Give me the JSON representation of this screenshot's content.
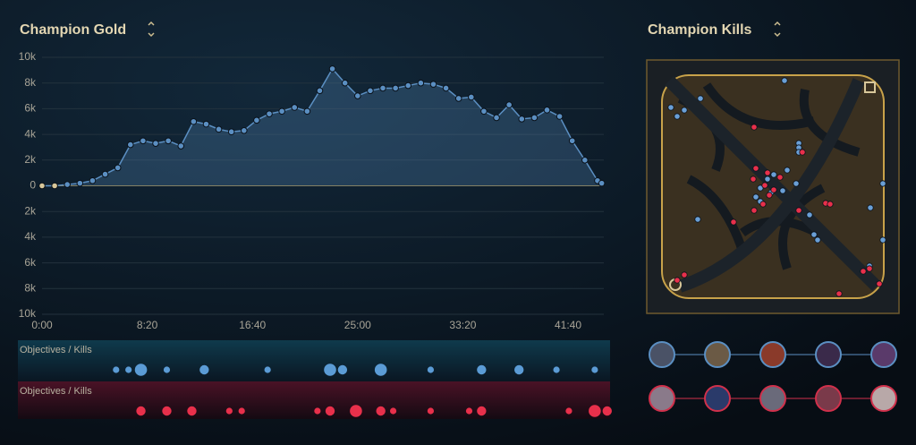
{
  "chart_data": [
    {
      "type": "line",
      "title": "Champion Gold",
      "x": [
        0,
        60,
        120,
        180,
        240,
        300,
        360,
        420,
        480,
        540,
        600,
        660,
        720,
        780,
        840,
        900,
        960,
        1020,
        1080,
        1140,
        1200,
        1260,
        1320,
        1380,
        1440,
        1500,
        1560,
        1620,
        1680,
        1740,
        1800,
        1860,
        1920,
        1980,
        2040,
        2100,
        2160,
        2220,
        2280,
        2340,
        2400,
        2460,
        2520,
        2580,
        2640,
        2660
      ],
      "series": [
        {
          "color": "#5b8fc2",
          "values": [
            0,
            0,
            100,
            200,
            400,
            900,
            1400,
            3200,
            3500,
            3300,
            3500,
            3100,
            5000,
            4800,
            4400,
            4200,
            4300,
            5100,
            5600,
            5800,
            6100,
            5800,
            7400,
            9100,
            8000,
            7000,
            7400,
            7600,
            7600,
            7800,
            8000,
            7900,
            7600,
            6800,
            6900,
            5800,
            5300,
            6300,
            5200,
            5300,
            5900,
            5400,
            3500,
            2000,
            400,
            200
          ]
        }
      ],
      "neutral_color": "#d8c79a",
      "xlim": [
        0,
        2670
      ],
      "xticks": [
        {
          "value": 0,
          "label": "0:00"
        },
        {
          "value": 500,
          "label": "8:20"
        },
        {
          "value": 1000,
          "label": "16:40"
        },
        {
          "value": 1500,
          "label": "25:00"
        },
        {
          "value": 2000,
          "label": "33:20"
        },
        {
          "value": 2500,
          "label": "41:40"
        }
      ],
      "ylim": [
        -10000,
        10000
      ],
      "yticks": [
        {
          "value": 10000,
          "label": "10k"
        },
        {
          "value": 8000,
          "label": "8k"
        },
        {
          "value": 6000,
          "label": "6k"
        },
        {
          "value": 4000,
          "label": "4k"
        },
        {
          "value": 2000,
          "label": "2k"
        },
        0,
        {
          "value": -2000,
          "label": "2k"
        },
        {
          "value": -4000,
          "label": "4k"
        },
        {
          "value": -6000,
          "label": "6k"
        },
        {
          "value": -8000,
          "label": "8k"
        },
        {
          "value": -10000,
          "label": "10k"
        }
      ],
      "grid": true
    },
    {
      "type": "timeline",
      "xlim": [
        0,
        2670
      ],
      "series": [
        {
          "label": "Objectives / Kills",
          "color": "#5b9bd5",
          "x": [
            352,
            411,
            470,
            593,
            771,
            1072,
            1369,
            1428,
            1610,
            1847,
            2089,
            2267,
            2445,
            2627
          ],
          "sizes": [
            1,
            1,
            3,
            1,
            2,
            1,
            3,
            2,
            3,
            1,
            2,
            2,
            1,
            1
          ]
        },
        {
          "label": "Objectives / Kills",
          "color": "#e8304b",
          "x": [
            470,
            593,
            712,
            890,
            949,
            1309,
            1369,
            1492,
            1610,
            1669,
            1847,
            2030,
            2089,
            2504,
            2627,
            2686
          ],
          "sizes": [
            2,
            2,
            2,
            1,
            1,
            1,
            2,
            3,
            2,
            1,
            1,
            1,
            2,
            1,
            3,
            2
          ]
        }
      ]
    },
    {
      "type": "scatter",
      "title": "Champion Kills",
      "xlim": [
        0,
        282
      ],
      "ylim": [
        283,
        0
      ],
      "series": [
        {
          "color": "#6a9fd6",
          "x": [
            27,
            34,
            42,
            60,
            154,
            170,
            170,
            170,
            157,
            142,
            135,
            127,
            139,
            152,
            167,
            127,
            182,
            187,
            191,
            250,
            264,
            264,
            249,
            57,
            122
          ],
          "y": [
            53,
            63,
            56,
            43,
            23,
            93,
            98,
            103,
            123,
            128,
            133,
            143,
            148,
            146,
            138,
            158,
            173,
            195,
            201,
            165,
            138,
            201,
            230,
            178,
            153
          ]
        },
        {
          "color": "#e8304b",
          "x": [
            120,
            174,
            122,
            135,
            149,
            119,
            132,
            142,
            137,
            130,
            120,
            97,
            170,
            200,
            205,
            242,
            249,
            260,
            215,
            42,
            34
          ],
          "y": [
            75,
            103,
            121,
            126,
            131,
            133,
            140,
            145,
            151,
            161,
            168,
            181,
            168,
            160,
            161,
            236,
            233,
            250,
            261,
            240,
            246
          ]
        }
      ]
    }
  ]
}
